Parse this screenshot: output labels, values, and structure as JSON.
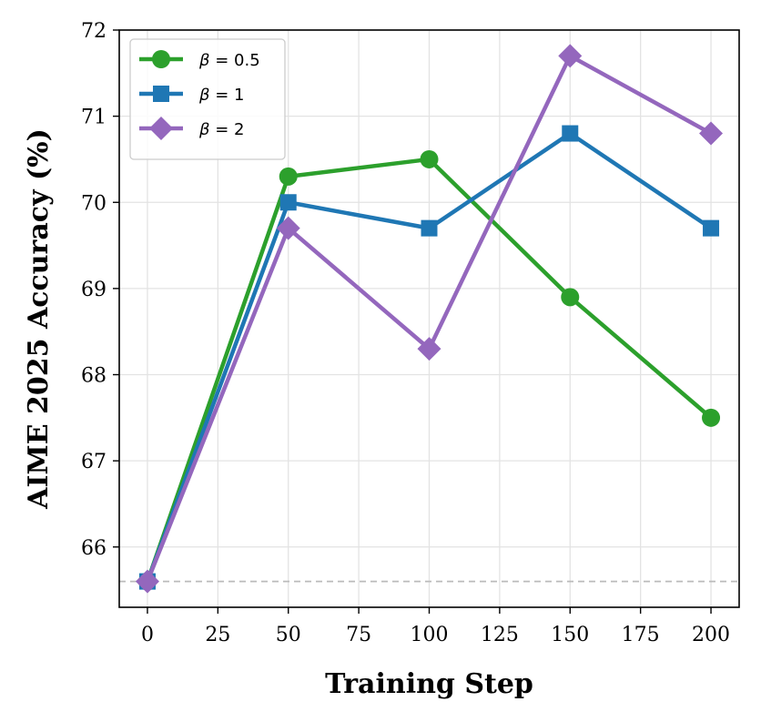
{
  "chart_data": {
    "type": "line",
    "xlabel": "Training Step",
    "ylabel": "AIME 2025 Accuracy (%)",
    "xlim": [
      -10,
      210
    ],
    "ylim": [
      65.3,
      72.0
    ],
    "xticks": [
      0,
      25,
      50,
      75,
      100,
      125,
      150,
      175,
      200
    ],
    "yticks": [
      66,
      67,
      68,
      69,
      70,
      71,
      72
    ],
    "x": [
      0,
      50,
      100,
      150,
      200
    ],
    "grid": true,
    "legend_position": "top-left",
    "baseline": {
      "y": 65.6,
      "style": "dashed",
      "color": "#bbbbbb"
    },
    "series": [
      {
        "name": "β = 0.5",
        "greek": "β",
        "rest": " = 0.5",
        "color": "#2ca02c",
        "marker": "circle",
        "values": [
          65.6,
          70.3,
          70.5,
          68.9,
          67.5
        ]
      },
      {
        "name": "β = 1",
        "greek": "β",
        "rest": " = 1",
        "color": "#1f77b4",
        "marker": "square",
        "values": [
          65.6,
          70.0,
          69.7,
          70.8,
          69.7
        ]
      },
      {
        "name": "β = 2",
        "greek": "β",
        "rest": " = 2",
        "color": "#9467bd",
        "marker": "diamond",
        "values": [
          65.6,
          69.7,
          68.3,
          71.7,
          70.8
        ]
      }
    ]
  }
}
